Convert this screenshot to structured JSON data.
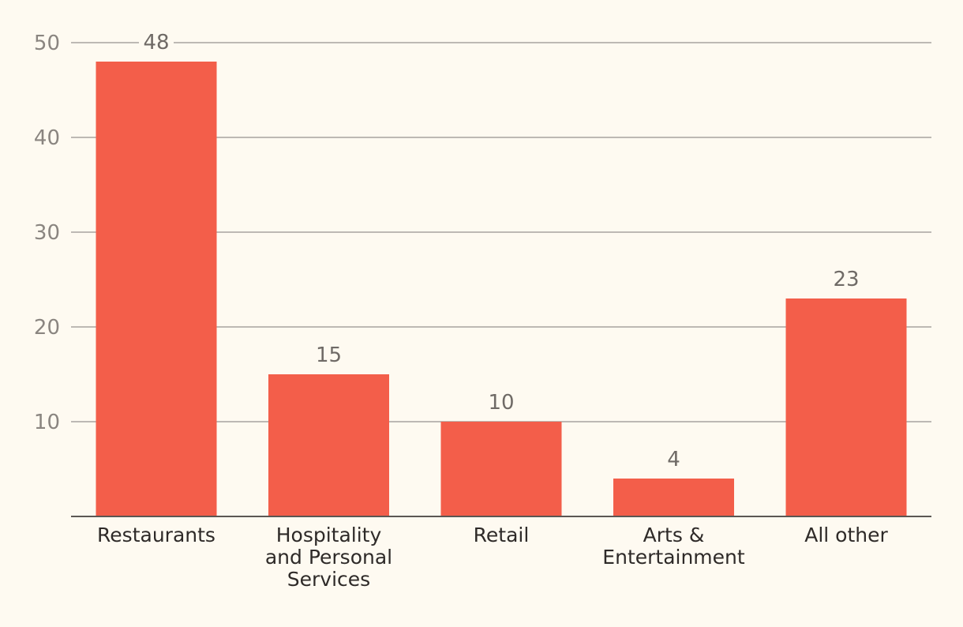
{
  "chart_data": {
    "type": "bar",
    "title": "",
    "xlabel": "",
    "ylabel": "",
    "categories": [
      [
        "Restaurants"
      ],
      [
        "Hospitality",
        "and Personal",
        "Services"
      ],
      [
        "Retail"
      ],
      [
        "Arts &",
        "Entertainment"
      ],
      [
        "All other"
      ]
    ],
    "values": [
      48,
      15,
      10,
      4,
      23
    ],
    "data_labels": [
      "48",
      "15",
      "10",
      "4",
      "23"
    ],
    "yticks": [
      10,
      20,
      30,
      40,
      50
    ],
    "ylim": [
      0,
      50
    ],
    "grid": true,
    "legend": "none",
    "colors": {
      "bar": "#f35e4a",
      "grid": "#a7a39f",
      "axis": "#5b5754",
      "background": "#fefaf1"
    }
  }
}
